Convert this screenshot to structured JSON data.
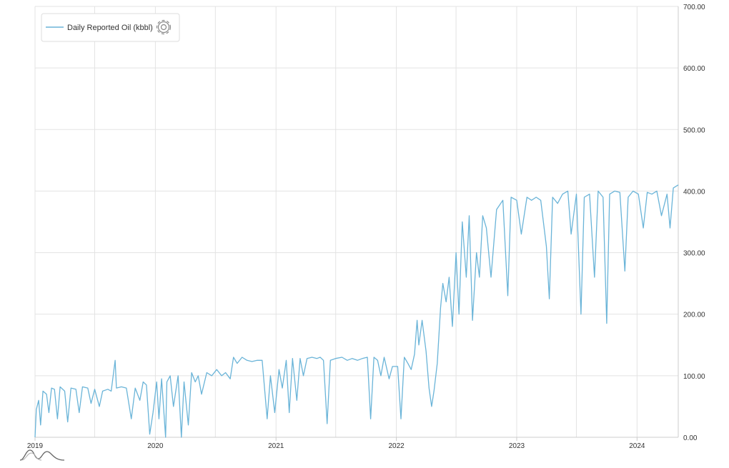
{
  "chart_data": {
    "type": "line",
    "title": "",
    "xlabel": "",
    "ylabel": "",
    "x_range": [
      "2019-01-01",
      "2024-05-05"
    ],
    "ylim": [
      0,
      700
    ],
    "y_ticks": [
      "0.00",
      "100.00",
      "200.00",
      "300.00",
      "400.00",
      "500.00",
      "600.00",
      "700.00"
    ],
    "x_ticks": [
      {
        "date": "2019-01-01",
        "label": "2019"
      },
      {
        "date": "2020-01-01",
        "label": "2020"
      },
      {
        "date": "2021-01-01",
        "label": "2021"
      },
      {
        "date": "2022-01-01",
        "label": "2022"
      },
      {
        "date": "2023-01-01",
        "label": "2023"
      },
      {
        "date": "2024-01-01",
        "label": "2024"
      }
    ],
    "x_gridlines": [
      "2019-01-01",
      "2019-07-01",
      "2020-01-01",
      "2020-07-01",
      "2021-01-01",
      "2021-07-01",
      "2022-01-01",
      "2022-07-01",
      "2023-01-01",
      "2023-07-01",
      "2024-01-01"
    ],
    "grid": true,
    "y_axis_position": "right",
    "legend_position": "top-left",
    "series": [
      {
        "name": "Daily Reported Oil (kbbl)",
        "color": "#6ab4d8",
        "points": [
          [
            "2019-01-01",
            0
          ],
          [
            "2019-01-05",
            45
          ],
          [
            "2019-01-12",
            60
          ],
          [
            "2019-01-18",
            20
          ],
          [
            "2019-01-25",
            75
          ],
          [
            "2019-02-05",
            70
          ],
          [
            "2019-02-12",
            40
          ],
          [
            "2019-02-20",
            80
          ],
          [
            "2019-03-01",
            78
          ],
          [
            "2019-03-10",
            30
          ],
          [
            "2019-03-18",
            82
          ],
          [
            "2019-04-01",
            75
          ],
          [
            "2019-04-10",
            25
          ],
          [
            "2019-04-20",
            80
          ],
          [
            "2019-05-05",
            78
          ],
          [
            "2019-05-15",
            40
          ],
          [
            "2019-05-25",
            82
          ],
          [
            "2019-06-10",
            80
          ],
          [
            "2019-06-20",
            55
          ],
          [
            "2019-07-01",
            78
          ],
          [
            "2019-07-15",
            50
          ],
          [
            "2019-07-25",
            75
          ],
          [
            "2019-08-10",
            78
          ],
          [
            "2019-08-20",
            75
          ],
          [
            "2019-09-01",
            125
          ],
          [
            "2019-09-05",
            80
          ],
          [
            "2019-09-20",
            82
          ],
          [
            "2019-10-05",
            80
          ],
          [
            "2019-10-20",
            30
          ],
          [
            "2019-11-01",
            80
          ],
          [
            "2019-11-15",
            60
          ],
          [
            "2019-11-25",
            90
          ],
          [
            "2019-12-05",
            85
          ],
          [
            "2019-12-15",
            5
          ],
          [
            "2019-12-25",
            40
          ],
          [
            "2020-01-05",
            90
          ],
          [
            "2020-01-12",
            30
          ],
          [
            "2020-01-20",
            95
          ],
          [
            "2020-02-01",
            0
          ],
          [
            "2020-02-05",
            90
          ],
          [
            "2020-02-15",
            100
          ],
          [
            "2020-02-25",
            50
          ],
          [
            "2020-03-10",
            100
          ],
          [
            "2020-03-20",
            0
          ],
          [
            "2020-03-28",
            90
          ],
          [
            "2020-04-10",
            20
          ],
          [
            "2020-04-20",
            105
          ],
          [
            "2020-05-01",
            90
          ],
          [
            "2020-05-10",
            100
          ],
          [
            "2020-05-20",
            70
          ],
          [
            "2020-06-05",
            105
          ],
          [
            "2020-06-20",
            100
          ],
          [
            "2020-07-05",
            110
          ],
          [
            "2020-07-20",
            100
          ],
          [
            "2020-08-01",
            105
          ],
          [
            "2020-08-15",
            95
          ],
          [
            "2020-08-25",
            130
          ],
          [
            "2020-09-05",
            120
          ],
          [
            "2020-09-20",
            130
          ],
          [
            "2020-10-05",
            125
          ],
          [
            "2020-10-20",
            123
          ],
          [
            "2020-11-05",
            125
          ],
          [
            "2020-11-20",
            125
          ],
          [
            "2020-12-05",
            30
          ],
          [
            "2020-12-15",
            100
          ],
          [
            "2020-12-28",
            40
          ],
          [
            "2021-01-10",
            110
          ],
          [
            "2021-01-20",
            80
          ],
          [
            "2021-02-01",
            125
          ],
          [
            "2021-02-10",
            40
          ],
          [
            "2021-02-20",
            128
          ],
          [
            "2021-03-05",
            60
          ],
          [
            "2021-03-15",
            128
          ],
          [
            "2021-03-25",
            100
          ],
          [
            "2021-04-05",
            128
          ],
          [
            "2021-04-20",
            130
          ],
          [
            "2021-05-05",
            128
          ],
          [
            "2021-05-15",
            130
          ],
          [
            "2021-05-25",
            125
          ],
          [
            "2021-06-05",
            22
          ],
          [
            "2021-06-15",
            125
          ],
          [
            "2021-07-01",
            128
          ],
          [
            "2021-07-20",
            130
          ],
          [
            "2021-08-05",
            125
          ],
          [
            "2021-08-20",
            128
          ],
          [
            "2021-09-05",
            125
          ],
          [
            "2021-09-20",
            128
          ],
          [
            "2021-10-05",
            130
          ],
          [
            "2021-10-15",
            30
          ],
          [
            "2021-10-25",
            130
          ],
          [
            "2021-11-05",
            125
          ],
          [
            "2021-11-15",
            100
          ],
          [
            "2021-11-25",
            130
          ],
          [
            "2021-12-10",
            95
          ],
          [
            "2021-12-20",
            115
          ],
          [
            "2022-01-05",
            115
          ],
          [
            "2022-01-15",
            30
          ],
          [
            "2022-01-25",
            130
          ],
          [
            "2022-02-05",
            120
          ],
          [
            "2022-02-15",
            110
          ],
          [
            "2022-02-25",
            135
          ],
          [
            "2022-03-05",
            190
          ],
          [
            "2022-03-10",
            150
          ],
          [
            "2022-03-20",
            190
          ],
          [
            "2022-04-01",
            140
          ],
          [
            "2022-04-10",
            80
          ],
          [
            "2022-04-18",
            50
          ],
          [
            "2022-04-25",
            75
          ],
          [
            "2022-05-05",
            120
          ],
          [
            "2022-05-15",
            210
          ],
          [
            "2022-05-22",
            250
          ],
          [
            "2022-06-01",
            220
          ],
          [
            "2022-06-10",
            260
          ],
          [
            "2022-06-20",
            180
          ],
          [
            "2022-07-01",
            300
          ],
          [
            "2022-07-10",
            200
          ],
          [
            "2022-07-20",
            350
          ],
          [
            "2022-08-01",
            260
          ],
          [
            "2022-08-10",
            360
          ],
          [
            "2022-08-20",
            190
          ],
          [
            "2022-09-01",
            300
          ],
          [
            "2022-09-10",
            260
          ],
          [
            "2022-09-20",
            360
          ],
          [
            "2022-10-01",
            340
          ],
          [
            "2022-10-15",
            260
          ],
          [
            "2022-11-01",
            370
          ],
          [
            "2022-11-20",
            385
          ],
          [
            "2022-12-05",
            230
          ],
          [
            "2022-12-15",
            390
          ],
          [
            "2023-01-01",
            385
          ],
          [
            "2023-01-15",
            330
          ],
          [
            "2023-02-01",
            390
          ],
          [
            "2023-02-15",
            385
          ],
          [
            "2023-03-01",
            390
          ],
          [
            "2023-03-15",
            385
          ],
          [
            "2023-04-01",
            310
          ],
          [
            "2023-04-10",
            225
          ],
          [
            "2023-04-20",
            390
          ],
          [
            "2023-05-05",
            380
          ],
          [
            "2023-05-20",
            395
          ],
          [
            "2023-06-05",
            400
          ],
          [
            "2023-06-15",
            330
          ],
          [
            "2023-07-01",
            395
          ],
          [
            "2023-07-15",
            200
          ],
          [
            "2023-07-25",
            390
          ],
          [
            "2023-08-10",
            395
          ],
          [
            "2023-08-25",
            260
          ],
          [
            "2023-09-05",
            400
          ],
          [
            "2023-09-20",
            390
          ],
          [
            "2023-10-01",
            185
          ],
          [
            "2023-10-10",
            395
          ],
          [
            "2023-10-25",
            400
          ],
          [
            "2023-11-10",
            398
          ],
          [
            "2023-11-25",
            270
          ],
          [
            "2023-12-05",
            390
          ],
          [
            "2023-12-20",
            400
          ],
          [
            "2024-01-05",
            395
          ],
          [
            "2024-01-20",
            340
          ],
          [
            "2024-02-01",
            398
          ],
          [
            "2024-02-15",
            395
          ],
          [
            "2024-03-01",
            400
          ],
          [
            "2024-03-15",
            360
          ],
          [
            "2024-04-01",
            395
          ],
          [
            "2024-04-10",
            340
          ],
          [
            "2024-04-20",
            405
          ],
          [
            "2024-05-05",
            410
          ]
        ]
      }
    ]
  },
  "legend": {
    "label": "Daily Reported Oil (kbbl)",
    "settings_icon": "gear-icon"
  },
  "navigator_icon": "range-selector-icon"
}
